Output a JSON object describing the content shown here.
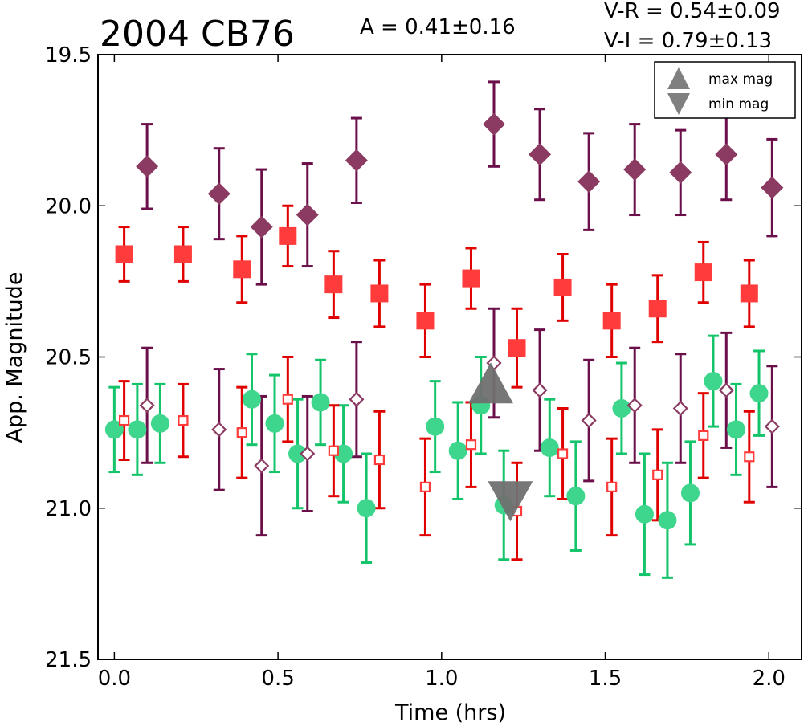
{
  "chart_data": {
    "type": "scatter",
    "title": "2004 CB76",
    "annotations": {
      "amplitude": "A  = 0.41±0.16",
      "v_minus_r": "V-R = 0.54±0.09",
      "v_minus_i": "V-I  = 0.79±0.13"
    },
    "xlabel": "Time (hrs)",
    "ylabel": "App. Magnitude",
    "xlim": [
      -0.05,
      2.1
    ],
    "ylim": [
      21.5,
      19.5
    ],
    "y_inverted": true,
    "xticks": [
      "0.0",
      "0.5",
      "1.0",
      "1.5",
      "2.0"
    ],
    "xtick_values": [
      0.0,
      0.5,
      1.0,
      1.5,
      2.0
    ],
    "yticks": [
      "19.5",
      "20.0",
      "20.5",
      "21.0",
      "21.5"
    ],
    "ytick_values": [
      19.5,
      20.0,
      20.5,
      21.0,
      21.5
    ],
    "grid": false,
    "legend_position": "top-right",
    "legend": [
      {
        "label": "max mag",
        "marker": "triangle-up",
        "color": "#808080"
      },
      {
        "label": "min mag",
        "marker": "triangle-down",
        "color": "#808080"
      }
    ],
    "colors": {
      "purple": "#8b3a62",
      "purple_err": "#6b0f4a",
      "red": "#ff3b3b",
      "red_err": "#e00000",
      "green": "#3dd68c",
      "green_err": "#14c46a",
      "gray": "#707070"
    },
    "series": [
      {
        "marker": "diamond-filled",
        "color": "purple",
        "points": [
          {
            "x": 0.1,
            "y": 19.87,
            "err": 0.14
          },
          {
            "x": 0.32,
            "y": 19.96,
            "err": 0.15
          },
          {
            "x": 0.45,
            "y": 20.07,
            "err": 0.19
          },
          {
            "x": 0.59,
            "y": 20.03,
            "err": 0.17
          },
          {
            "x": 0.74,
            "y": 19.85,
            "err": 0.14
          },
          {
            "x": 1.16,
            "y": 19.73,
            "err": 0.14
          },
          {
            "x": 1.3,
            "y": 19.83,
            "err": 0.15
          },
          {
            "x": 1.45,
            "y": 19.92,
            "err": 0.16
          },
          {
            "x": 1.59,
            "y": 19.88,
            "err": 0.15
          },
          {
            "x": 1.73,
            "y": 19.89,
            "err": 0.14
          },
          {
            "x": 1.87,
            "y": 19.83,
            "err": 0.15
          },
          {
            "x": 2.01,
            "y": 19.94,
            "err": 0.16
          }
        ]
      },
      {
        "marker": "square-filled",
        "color": "red",
        "points": [
          {
            "x": 0.03,
            "y": 20.16,
            "err": 0.09
          },
          {
            "x": 0.21,
            "y": 20.16,
            "err": 0.09
          },
          {
            "x": 0.39,
            "y": 20.21,
            "err": 0.11
          },
          {
            "x": 0.53,
            "y": 20.1,
            "err": 0.1
          },
          {
            "x": 0.67,
            "y": 20.26,
            "err": 0.11
          },
          {
            "x": 0.81,
            "y": 20.29,
            "err": 0.11
          },
          {
            "x": 0.95,
            "y": 20.38,
            "err": 0.12
          },
          {
            "x": 1.09,
            "y": 20.24,
            "err": 0.1
          },
          {
            "x": 1.23,
            "y": 20.47,
            "err": 0.13
          },
          {
            "x": 1.37,
            "y": 20.27,
            "err": 0.11
          },
          {
            "x": 1.52,
            "y": 20.38,
            "err": 0.12
          },
          {
            "x": 1.66,
            "y": 20.34,
            "err": 0.11
          },
          {
            "x": 1.8,
            "y": 20.22,
            "err": 0.1
          },
          {
            "x": 1.94,
            "y": 20.29,
            "err": 0.11
          }
        ]
      },
      {
        "marker": "circle-filled",
        "color": "green",
        "points": [
          {
            "x": 0.0,
            "y": 20.74,
            "err": 0.14
          },
          {
            "x": 0.07,
            "y": 20.74,
            "err": 0.15
          },
          {
            "x": 0.14,
            "y": 20.72,
            "err": 0.13
          },
          {
            "x": 0.42,
            "y": 20.64,
            "err": 0.15
          },
          {
            "x": 0.49,
            "y": 20.72,
            "err": 0.16
          },
          {
            "x": 0.56,
            "y": 20.82,
            "err": 0.18
          },
          {
            "x": 0.63,
            "y": 20.65,
            "err": 0.14
          },
          {
            "x": 0.7,
            "y": 20.82,
            "err": 0.16
          },
          {
            "x": 0.77,
            "y": 21.0,
            "err": 0.18
          },
          {
            "x": 0.98,
            "y": 20.73,
            "err": 0.15
          },
          {
            "x": 1.05,
            "y": 20.81,
            "err": 0.16
          },
          {
            "x": 1.12,
            "y": 20.66,
            "err": 0.16
          },
          {
            "x": 1.19,
            "y": 20.99,
            "err": 0.18
          },
          {
            "x": 1.33,
            "y": 20.8,
            "err": 0.16
          },
          {
            "x": 1.41,
            "y": 20.96,
            "err": 0.18
          },
          {
            "x": 1.55,
            "y": 20.67,
            "err": 0.15
          },
          {
            "x": 1.62,
            "y": 21.02,
            "err": 0.2
          },
          {
            "x": 1.69,
            "y": 21.04,
            "err": 0.19
          },
          {
            "x": 1.76,
            "y": 20.95,
            "err": 0.17
          },
          {
            "x": 1.83,
            "y": 20.58,
            "err": 0.15
          },
          {
            "x": 1.9,
            "y": 20.74,
            "err": 0.15
          },
          {
            "x": 1.97,
            "y": 20.62,
            "err": 0.14
          }
        ]
      },
      {
        "marker": "diamond-open",
        "color": "purple",
        "points": [
          {
            "x": 0.1,
            "y": 20.66,
            "err": 0.19
          },
          {
            "x": 0.32,
            "y": 20.74,
            "err": 0.2
          },
          {
            "x": 0.45,
            "y": 20.86,
            "err": 0.23
          },
          {
            "x": 0.59,
            "y": 20.82,
            "err": 0.19
          },
          {
            "x": 0.74,
            "y": 20.64,
            "err": 0.19
          },
          {
            "x": 1.16,
            "y": 20.52,
            "err": 0.18
          },
          {
            "x": 1.3,
            "y": 20.61,
            "err": 0.2
          },
          {
            "x": 1.45,
            "y": 20.71,
            "err": 0.2
          },
          {
            "x": 1.59,
            "y": 20.66,
            "err": 0.19
          },
          {
            "x": 1.73,
            "y": 20.67,
            "err": 0.18
          },
          {
            "x": 1.87,
            "y": 20.61,
            "err": 0.19
          },
          {
            "x": 2.01,
            "y": 20.73,
            "err": 0.2
          }
        ]
      },
      {
        "marker": "square-open",
        "color": "red",
        "points": [
          {
            "x": 0.03,
            "y": 20.71,
            "err": 0.13
          },
          {
            "x": 0.21,
            "y": 20.71,
            "err": 0.12
          },
          {
            "x": 0.39,
            "y": 20.75,
            "err": 0.15
          },
          {
            "x": 0.53,
            "y": 20.64,
            "err": 0.14
          },
          {
            "x": 0.67,
            "y": 20.81,
            "err": 0.15
          },
          {
            "x": 0.81,
            "y": 20.84,
            "err": 0.16
          },
          {
            "x": 0.95,
            "y": 20.93,
            "err": 0.16
          },
          {
            "x": 1.09,
            "y": 20.79,
            "err": 0.14
          },
          {
            "x": 1.23,
            "y": 21.01,
            "err": 0.16
          },
          {
            "x": 1.37,
            "y": 20.82,
            "err": 0.15
          },
          {
            "x": 1.52,
            "y": 20.93,
            "err": 0.16
          },
          {
            "x": 1.66,
            "y": 20.89,
            "err": 0.15
          },
          {
            "x": 1.8,
            "y": 20.76,
            "err": 0.14
          },
          {
            "x": 1.94,
            "y": 20.83,
            "err": 0.15
          }
        ]
      }
    ],
    "extrema_markers": [
      {
        "label": "max mag",
        "marker": "triangle-up",
        "x": 1.15,
        "y": 20.64
      },
      {
        "label": "min mag",
        "marker": "triangle-down",
        "x": 1.21,
        "y": 20.98
      }
    ]
  }
}
